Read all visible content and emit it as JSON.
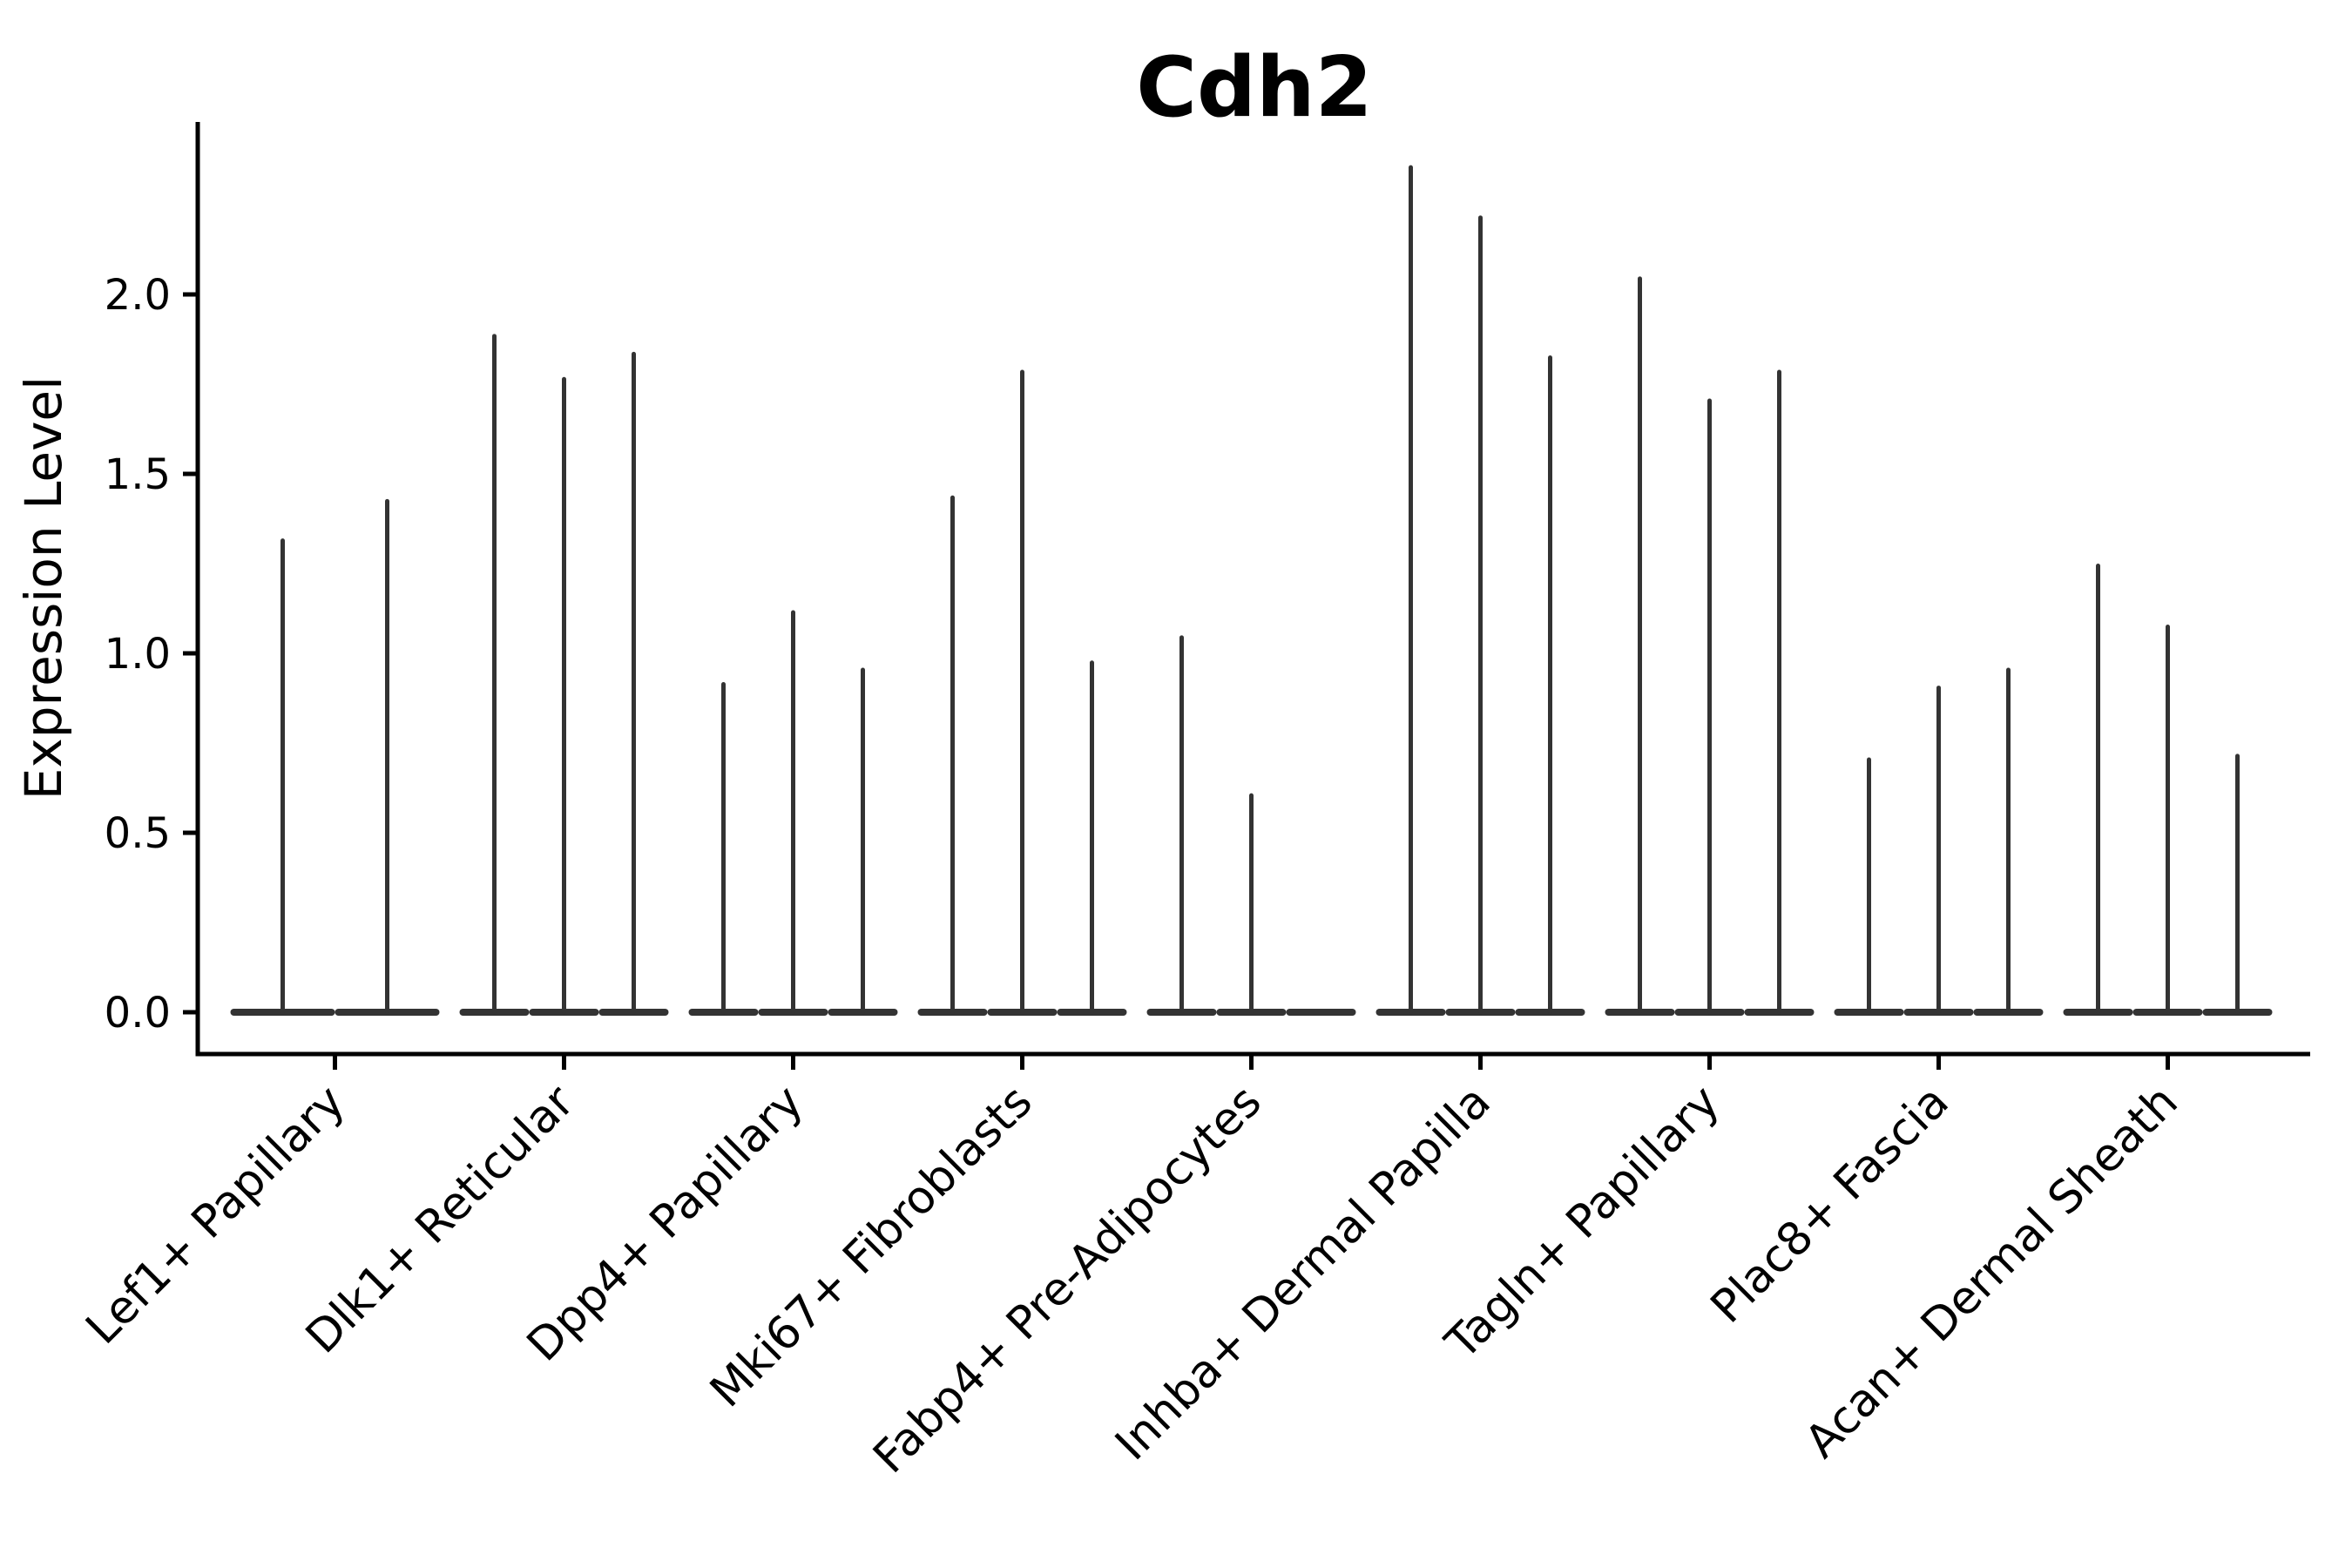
{
  "chart_data": {
    "type": "violin",
    "title": "Cdh2",
    "xlabel": "",
    "ylabel": "Expression Level",
    "ylim": [
      -0.11,
      2.48
    ],
    "grid": false,
    "legend": "none",
    "yticks": [
      0.0,
      0.5,
      1.0,
      1.5,
      2.0
    ],
    "ytick_labels": [
      "0.0",
      "0.5",
      "1.0",
      "1.5",
      "2.0"
    ],
    "categories": [
      "Lef1+ Papillary",
      "Dlk1+ Reticular",
      "Dpp4+ Papillary",
      "Mki67+ Fibroblasts",
      "Fabp4+ Pre-Adipocytes",
      "Inhba+ Dermal Papilla",
      "Tagln+ Papillary",
      "Plac8+ Fascia",
      "Acan+ Dermal Sheath"
    ],
    "groups": [
      {
        "label": "Lef1+ Papillary",
        "violin_max": [
          1.32,
          1.43
        ]
      },
      {
        "label": "Dlk1+ Reticular",
        "violin_max": [
          1.89,
          1.77,
          1.84
        ]
      },
      {
        "label": "Dpp4+ Papillary",
        "violin_max": [
          0.92,
          1.12,
          0.96
        ]
      },
      {
        "label": "Mki67+ Fibroblasts",
        "violin_max": [
          1.44,
          1.79,
          0.98
        ]
      },
      {
        "label": "Fabp4+ Pre-Adipocytes",
        "violin_max": [
          1.05,
          0.61,
          0.0
        ]
      },
      {
        "label": "Inhba+ Dermal Papilla",
        "violin_max": [
          2.36,
          2.22,
          1.83
        ]
      },
      {
        "label": "Tagln+ Papillary",
        "violin_max": [
          2.05,
          1.71,
          1.79
        ]
      },
      {
        "label": "Plac8+ Fascia",
        "violin_max": [
          0.71,
          0.91,
          0.96
        ]
      },
      {
        "label": "Acan+ Dermal Sheath",
        "violin_max": [
          1.25,
          1.08,
          0.72
        ]
      }
    ],
    "colors": {
      "violin": "#333333",
      "axis": "#000000",
      "text": "#000000",
      "background": "#ffffff"
    }
  }
}
